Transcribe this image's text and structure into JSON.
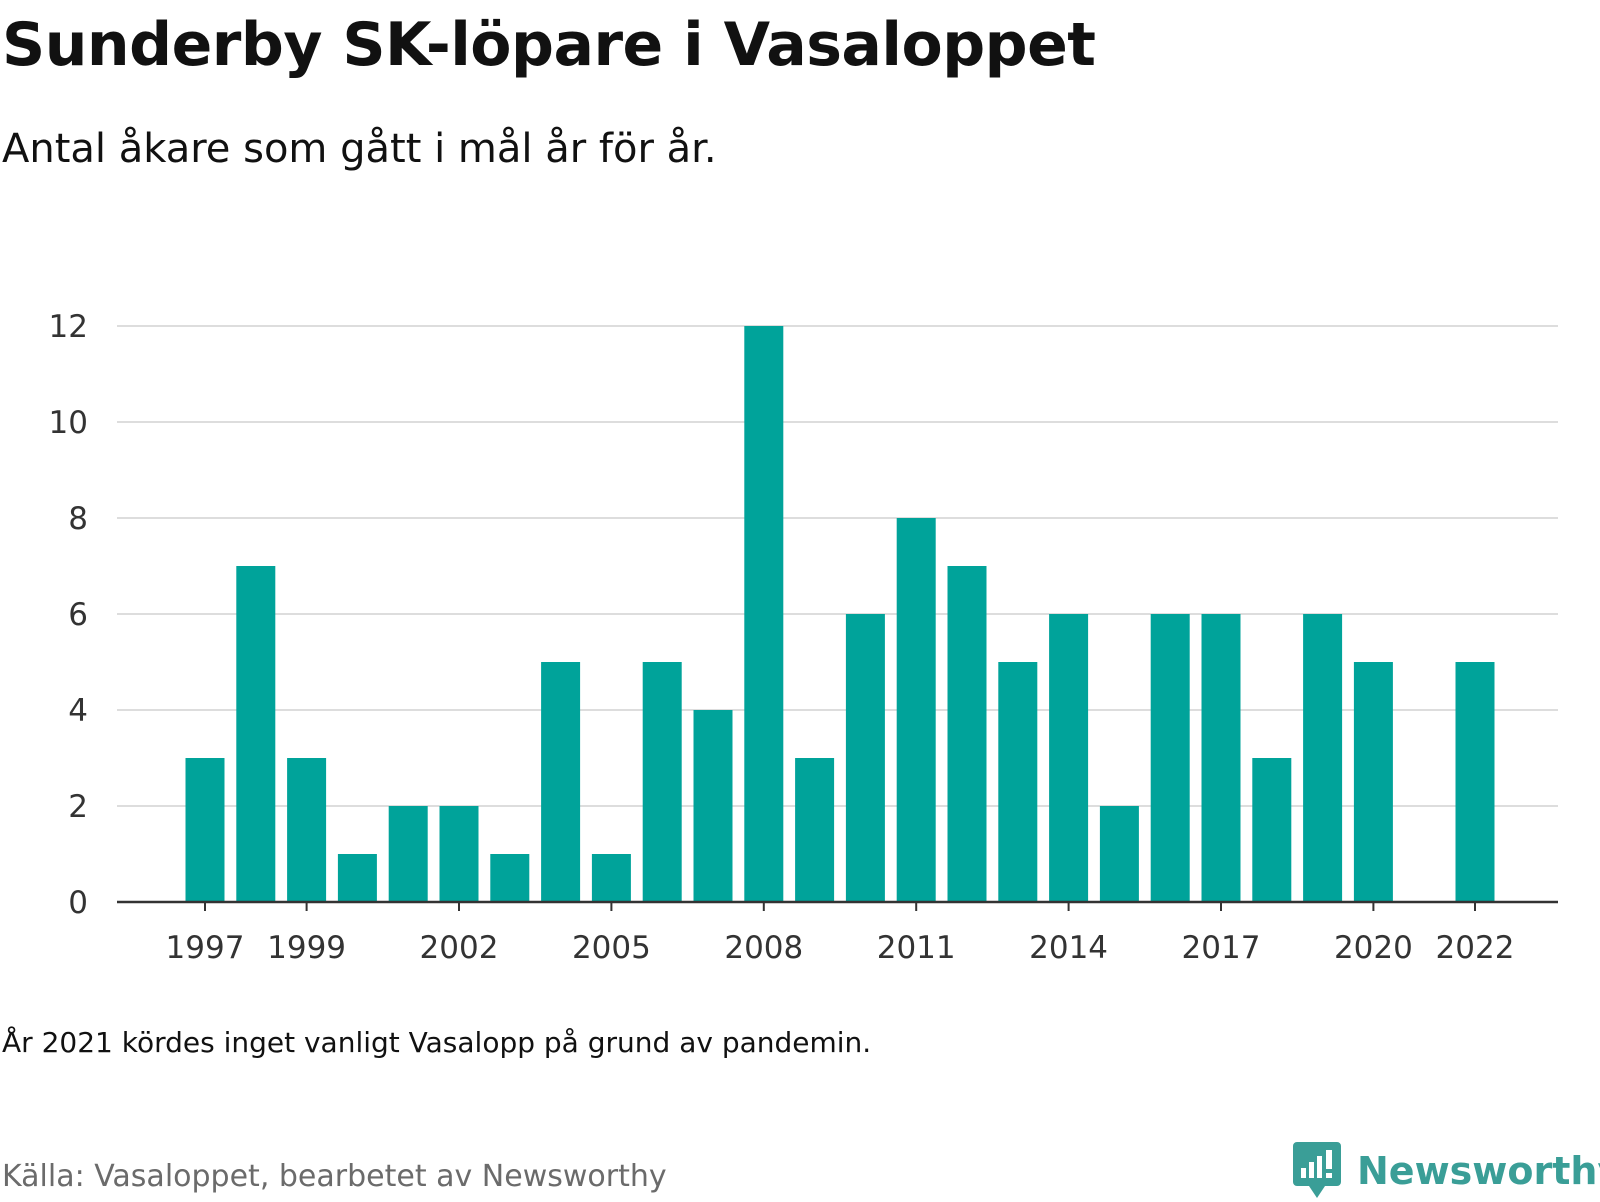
{
  "header": {
    "title": "Sunderby SK-löpare i Vasaloppet",
    "subtitle": "Antal åkare som gått i mål år för år."
  },
  "footer": {
    "note": "År 2021 kördes inget vanligt Vasalopp på grund av pandemin.",
    "source": "Källa: Vasaloppet, bearbetet av Newsworthy",
    "brand_name": "Newsworthy",
    "brand_icon": "newsworthy-logo-icon"
  },
  "colors": {
    "bar": "#00a39a",
    "brand": "#3a9e97",
    "grid": "#dddddd",
    "axis": "#333333"
  },
  "chart_data": {
    "type": "bar",
    "title": "Sunderby SK-löpare i Vasaloppet",
    "subtitle": "Antal åkare som gått i mål år för år.",
    "xlabel": "",
    "ylabel": "",
    "categories": [
      "1997",
      "1998",
      "1999",
      "2000",
      "2001",
      "2002",
      "2003",
      "2004",
      "2005",
      "2006",
      "2007",
      "2008",
      "2009",
      "2010",
      "2011",
      "2012",
      "2013",
      "2014",
      "2015",
      "2016",
      "2017",
      "2018",
      "2019",
      "2020",
      "2021",
      "2022"
    ],
    "values": [
      3,
      7,
      3,
      1,
      2,
      2,
      1,
      5,
      1,
      5,
      4,
      12,
      3,
      6,
      8,
      7,
      5,
      6,
      2,
      6,
      6,
      3,
      6,
      5,
      null,
      5
    ],
    "ylim": [
      0,
      12
    ],
    "yticks": [
      0,
      2,
      4,
      6,
      8,
      10,
      12
    ],
    "xtick_labels": [
      "1997",
      "1999",
      "2002",
      "2005",
      "2008",
      "2011",
      "2014",
      "2017",
      "2020",
      "2022"
    ],
    "grid": "horizontal",
    "legend": "none"
  }
}
